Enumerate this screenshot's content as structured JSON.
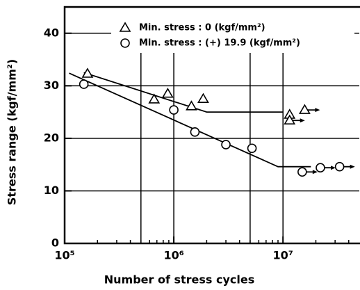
{
  "chart_data": {
    "type": "scatter",
    "x_label": "Number of stress cycles",
    "y_label": "Stress range (kgf/mm²)",
    "xscale": "log",
    "xlim": [
      100000,
      50000000
    ],
    "xticks": [
      {
        "value": 100000,
        "label": "10⁵"
      },
      {
        "value": 1000000,
        "label": "10⁶"
      },
      {
        "value": 10000000,
        "label": "10⁷"
      }
    ],
    "xgrid": [
      500000,
      1000000,
      5000000,
      10000000
    ],
    "ylim": [
      0,
      45
    ],
    "yticks": [
      0,
      10,
      20,
      30,
      40
    ],
    "grid": true,
    "legend": "upper left",
    "series": [
      {
        "name": "Min. stress : 0 (kgf/mm²)",
        "marker": "triangle",
        "color": "#000000",
        "x": [
          162000,
          660000,
          880000,
          1450000,
          1860000,
          11500000,
          11500000,
          15800000
        ],
        "values": [
          32.3,
          27.4,
          28.5,
          26.1,
          27.5,
          24.5,
          23.4,
          25.4
        ],
        "runout": [
          false,
          false,
          false,
          false,
          false,
          false,
          true,
          true
        ],
        "fit": {
          "x": [
            150000,
            2000000,
            10000000
          ],
          "values": [
            32.5,
            25,
            25
          ]
        }
      },
      {
        "name": "Min. stress : (+) 19.9 (kgf/mm²)",
        "marker": "circle",
        "color": "#000000",
        "x": [
          150000,
          1000000,
          1560000,
          3000000,
          5200000,
          15000000,
          22000000,
          33000000
        ],
        "values": [
          30.3,
          25.4,
          21.2,
          18.8,
          18.1,
          13.6,
          14.4,
          14.6
        ],
        "runout": [
          false,
          false,
          false,
          false,
          false,
          true,
          true,
          true
        ],
        "fit": {
          "x": [
            110000,
            9000000,
            18000000
          ],
          "values": [
            32.4,
            14.6,
            14.6
          ]
        }
      }
    ]
  }
}
